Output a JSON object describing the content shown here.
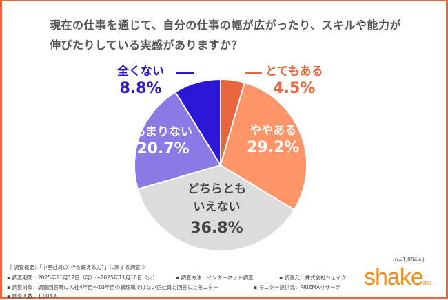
{
  "title": {
    "line1": "現在の仕事を通じて、自分の仕事の幅が広がったり、スキルや能力が",
    "line2": "伸びたりしている実感がありますか？"
  },
  "chart_data": {
    "type": "pie",
    "start": "top",
    "direction": "clockwise",
    "slices": [
      {
        "label": "とてもある",
        "value": 4.5,
        "display": "4.5%",
        "color": "#e8643a"
      },
      {
        "label": "ややある",
        "value": 29.2,
        "display": "29.2%",
        "color": "#ff9468"
      },
      {
        "label": "どちらともいえない",
        "label_lines": [
          "どちらとも",
          "いえない"
        ],
        "value": 36.8,
        "display": "36.8%",
        "color": "#dcdcdc"
      },
      {
        "label": "あまりない",
        "value": 20.7,
        "display": "20.7%",
        "color": "#8a7ae6"
      },
      {
        "label": "全くない",
        "value": 8.8,
        "display": "8.8%",
        "color": "#2b17d6"
      }
    ]
  },
  "footer": {
    "n": "(n=1,004人)",
    "heading": "《 調査概要：「中堅社員の“枠を超える力”」に関する調査 》",
    "period": "▪ 調査期間：2025年11月17日（月）～2025年11月18日（火）",
    "method": "▪ 調査方法：インターネット調査",
    "source": "▪ 調査元：株式会社シェイク",
    "target": "▪ 調査対象：調査回答時に入社4年目～10年目の管理職ではない正社員と回答したモニター",
    "provider": "▪ モニター提供元：PRIZMAリサーチ",
    "count": "▪ 調査人数：1,004人"
  },
  "logo": {
    "text": "shake",
    "suffix": "Inc."
  },
  "colors": {
    "frame": "#e8643a",
    "logo": "#f08c1e"
  }
}
